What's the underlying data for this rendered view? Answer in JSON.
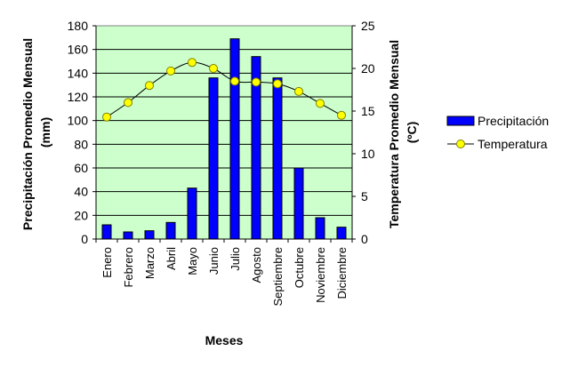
{
  "chart_data": {
    "type": "bar",
    "categories": [
      "Enero",
      "Febrero",
      "Marzo",
      "Abril",
      "Mayo",
      "Junio",
      "Julio",
      "Agosto",
      "Septiembre",
      "Octubre",
      "Noviembre",
      "Diciembre"
    ],
    "series": [
      {
        "name": "Precipitación",
        "type": "bar",
        "axis": "left",
        "color": "#0000FF",
        "values": [
          12,
          6,
          7,
          14,
          43,
          136,
          169,
          154,
          136,
          60,
          18,
          10
        ]
      },
      {
        "name": "Temperatura",
        "type": "line",
        "axis": "right",
        "color": "#FFFF00",
        "line_color": "#000000",
        "values": [
          14.3,
          16.0,
          18.0,
          19.7,
          20.7,
          20.0,
          18.5,
          18.4,
          18.2,
          17.3,
          15.9,
          14.5
        ]
      }
    ],
    "xlabel": "Meses",
    "ylabel": "Precipitación Promedio Mensual (mm)",
    "ylabel_lines": [
      "Precipitación Promedio Mensual",
      "(mm)"
    ],
    "y2label": "Temperatura Promedio Mensual (ºC)",
    "y2label_lines": [
      "Temperatura Promedio Mensual",
      "(ºC)"
    ],
    "ylim": [
      0,
      180
    ],
    "yticks": [
      "0",
      "20",
      "40",
      "60",
      "80",
      "100",
      "120",
      "140",
      "160",
      "180"
    ],
    "y2lim": [
      0,
      25
    ],
    "y2ticks": [
      "0",
      "5",
      "10",
      "15",
      "20",
      "25"
    ],
    "grid": true,
    "plot_background": "#CCFFCC",
    "legend_position": "right"
  }
}
